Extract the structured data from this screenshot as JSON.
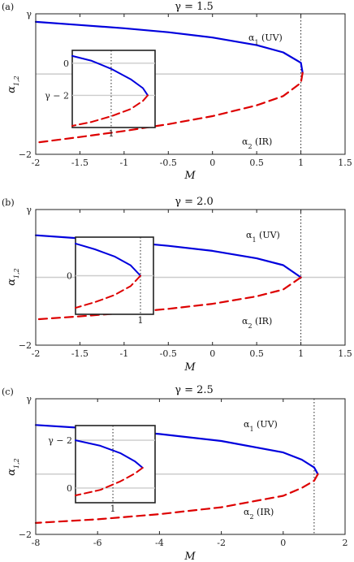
{
  "figure": {
    "panels": [
      {
        "tag": "(a)",
        "title": "γ = 1.5",
        "ylabel": "α1,2",
        "xlabel": "M",
        "ytick_top": "γ",
        "ytick_bottom": "−2",
        "xticks": [
          "-2",
          "-1.5",
          "-1",
          "-0.5",
          "0",
          "0.5",
          "1",
          "1.5"
        ],
        "ann_uv": "α1 (UV)",
        "ann_ir": "α2 (IR)",
        "inset": {
          "yticks": [
            "0",
            "γ − 2"
          ],
          "xtick": "1"
        }
      },
      {
        "tag": "(b)",
        "title": "γ = 2.0",
        "ylabel": "α1,2",
        "xlabel": "M",
        "ytick_top": "γ",
        "ytick_bottom": "−2",
        "xticks": [
          "-2",
          "-1.5",
          "-1",
          "-0.5",
          "0",
          "0.5",
          "1",
          "1.5"
        ],
        "ann_uv": "α1 (UV)",
        "ann_ir": "α2 (IR)",
        "inset": {
          "yticks": [
            "0"
          ],
          "xtick": "1"
        }
      },
      {
        "tag": "(c)",
        "title": "γ = 2.5",
        "ylabel": "α1,2",
        "xlabel": "M",
        "ytick_top": "γ",
        "ytick_bottom": "−2",
        "xticks": [
          "-8",
          "-6",
          "-4",
          "-2",
          "0",
          "2"
        ],
        "ann_uv": "α1 (UV)",
        "ann_ir": "α2 (IR)",
        "inset": {
          "yticks": [
            "γ − 2",
            "0"
          ],
          "xtick": "1"
        }
      }
    ]
  },
  "colors": {
    "uv": "#0000dd",
    "ir": "#dd0000",
    "axis": "#222222",
    "zero_line": "#cccccc"
  },
  "chart_data": [
    {
      "type": "line",
      "title": "γ = 1.5",
      "xlabel": "M",
      "ylabel": "α1,2",
      "xlim": [
        -2,
        1.5
      ],
      "ylim": [
        -2,
        1.5
      ],
      "vline_x": 1,
      "series": [
        {
          "name": "α1 (UV)",
          "style": "solid",
          "color": "#0000dd",
          "x": [
            -2,
            -1.5,
            -1,
            -0.5,
            0,
            0.5,
            0.8,
            1.0,
            1.02
          ],
          "y": [
            1.3,
            1.22,
            1.14,
            1.04,
            0.91,
            0.72,
            0.54,
            0.28,
            0.03
          ]
        },
        {
          "name": "α2 (IR)",
          "style": "dashed",
          "color": "#dd0000",
          "x": [
            1.02,
            1.0,
            0.8,
            0.5,
            0,
            -0.5,
            -1,
            -1.5,
            -2
          ],
          "y": [
            0.03,
            -0.22,
            -0.55,
            -0.78,
            -1.05,
            -1.25,
            -1.42,
            -1.57,
            -1.71
          ]
        }
      ],
      "inset": {
        "series": [
          {
            "name": "α1 (UV)",
            "style": "solid",
            "color": "#0000dd",
            "x": [
              0,
              0.4,
              0.8,
              1.2,
              1.45,
              1.55
            ],
            "y": [
              0.45,
              0.15,
              -0.35,
              -1.0,
              -1.55,
              -2.0
            ]
          },
          {
            "name": "α2 (IR)",
            "style": "dashed",
            "color": "#dd0000",
            "x": [
              1.55,
              1.45,
              1.2,
              0.8,
              0.4,
              0
            ],
            "y": [
              -2.0,
              -2.35,
              -2.85,
              -3.3,
              -3.65,
              -3.9
            ]
          }
        ]
      }
    },
    {
      "type": "line",
      "title": "γ = 2.0",
      "xlabel": "M",
      "ylabel": "α1,2",
      "xlim": [
        -2,
        1.5
      ],
      "ylim": [
        -2,
        2
      ],
      "vline_x": 1,
      "series": [
        {
          "name": "α1 (UV)",
          "style": "solid",
          "color": "#0000dd",
          "x": [
            -2,
            -1.5,
            -1,
            -0.5,
            0,
            0.5,
            0.8,
            1.0
          ],
          "y": [
            1.24,
            1.15,
            1.05,
            0.93,
            0.78,
            0.56,
            0.36,
            0
          ]
        },
        {
          "name": "α2 (IR)",
          "style": "dashed",
          "color": "#dd0000",
          "x": [
            1.0,
            0.8,
            0.5,
            0,
            -0.5,
            -1,
            -1.5,
            -2
          ],
          "y": [
            0,
            -0.36,
            -0.56,
            -0.78,
            -0.93,
            -1.05,
            -1.15,
            -1.24
          ]
        }
      ],
      "inset": {
        "series": [
          {
            "name": "α1 (UV)",
            "style": "solid",
            "color": "#0000dd",
            "x": [
              0,
              0.3,
              0.6,
              0.85,
              1.0
            ],
            "y": [
              1.0,
              0.82,
              0.6,
              0.32,
              0
            ]
          },
          {
            "name": "α2 (IR)",
            "style": "dashed",
            "color": "#dd0000",
            "x": [
              1.0,
              0.85,
              0.6,
              0.3,
              0
            ],
            "y": [
              0,
              -0.32,
              -0.6,
              -0.82,
              -1.0
            ]
          }
        ]
      }
    },
    {
      "type": "line",
      "title": "γ = 2.5",
      "xlabel": "M",
      "ylabel": "α1,2",
      "xlim": [
        -8,
        2
      ],
      "ylim": [
        -2,
        2.5
      ],
      "vline_x": 1,
      "series": [
        {
          "name": "α1 (UV)",
          "style": "solid",
          "color": "#0000dd",
          "x": [
            -8,
            -6,
            -4,
            -2,
            0,
            0.6,
            1.0,
            1.12
          ],
          "y": [
            1.63,
            1.5,
            1.33,
            1.1,
            0.72,
            0.48,
            0.22,
            0
          ]
        },
        {
          "name": "α2 (IR)",
          "style": "dashed",
          "color": "#dd0000",
          "x": [
            1.12,
            1.0,
            0.6,
            0,
            -2,
            -4,
            -6,
            -8
          ],
          "y": [
            0,
            -0.22,
            -0.46,
            -0.72,
            -1.1,
            -1.33,
            -1.5,
            -1.62
          ]
        }
      ],
      "inset": {
        "series": [
          {
            "name": "α1 (UV)",
            "style": "solid",
            "color": "#0000dd",
            "x": [
              0,
              0.5,
              0.9,
              1.2,
              1.35
            ],
            "y": [
              1.3,
              1.15,
              0.95,
              0.72,
              0.55
            ]
          },
          {
            "name": "α2 (IR)",
            "style": "dashed",
            "color": "#dd0000",
            "x": [
              1.35,
              1.2,
              0.9,
              0.5,
              0
            ],
            "y": [
              0.55,
              0.4,
              0.18,
              -0.05,
              -0.2
            ]
          }
        ]
      }
    }
  ]
}
